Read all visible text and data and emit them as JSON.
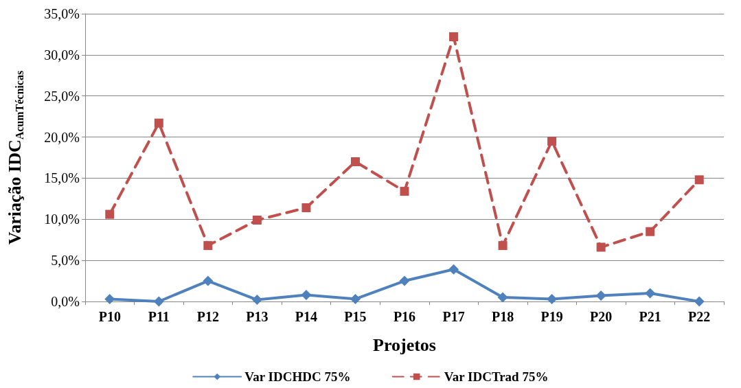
{
  "chart_data": {
    "type": "line",
    "xlabel": "Projetos",
    "ylabel": "Variação IDC$_{AcumTécnicas}$",
    "categories": [
      "P10",
      "P11",
      "P12",
      "P13",
      "P14",
      "P15",
      "P16",
      "P17",
      "P18",
      "P19",
      "P20",
      "P21",
      "P22"
    ],
    "series": [
      {
        "name": "Var IDCHDC 75%",
        "color": "#4f81bd",
        "marker": "diamond",
        "line_style": "solid",
        "values": [
          0.3,
          0,
          2.5,
          0.2,
          0.8,
          0.3,
          2.5,
          3.9,
          0.5,
          0.3,
          0.7,
          1.0,
          0
        ]
      },
      {
        "name": "Var IDCTrad 75%",
        "color": "#c0504d",
        "marker": "square",
        "line_style": "dashed",
        "values": [
          10.6,
          21.7,
          6.8,
          9.9,
          11.4,
          17.0,
          13.4,
          32.2,
          6.8,
          19.5,
          6.6,
          8.5,
          14.8
        ]
      }
    ],
    "ylim": [
      0,
      35
    ],
    "yticks": [
      {
        "value": 0,
        "label": "0,0%"
      },
      {
        "value": 5,
        "label": "5,0%"
      },
      {
        "value": 10,
        "label": "10,0%"
      },
      {
        "value": 15,
        "label": "15,0%"
      },
      {
        "value": 20,
        "label": "20,0%"
      },
      {
        "value": 25,
        "label": "25,0%"
      },
      {
        "value": 30,
        "label": "30,0%"
      },
      {
        "value": 35,
        "label": "35,0%"
      }
    ],
    "grid": "y",
    "legend": "bottom"
  }
}
